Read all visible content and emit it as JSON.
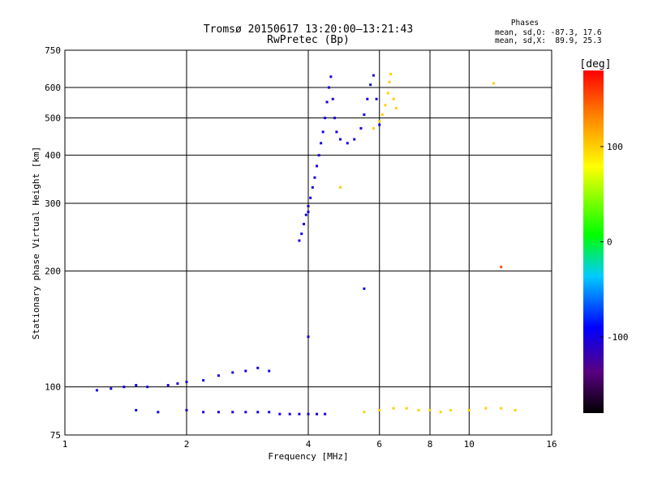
{
  "chart_data": {
    "type": "scatter",
    "title": "Tromsø 20150617 13:20:00–13:21:43",
    "subtitle": "RwPretec (Bp)",
    "xlabel": "Frequency [MHz]",
    "ylabel": "Stationary phase Virtual Height [km]",
    "x_scale": "log",
    "y_scale": "log",
    "xlim": [
      1,
      16
    ],
    "ylim": [
      75,
      750
    ],
    "xticks": [
      1,
      2,
      4,
      6,
      8,
      10,
      16
    ],
    "xtick_labels": [
      "1",
      "2",
      "4",
      "6",
      "8",
      "10",
      "16"
    ],
    "yticks": [
      75,
      100,
      200,
      300,
      400,
      500,
      600,
      750
    ],
    "ytick_labels": [
      "75",
      "100",
      "200",
      "300",
      "400",
      "500",
      "600",
      "750"
    ],
    "grid": true,
    "info_box": {
      "title": "Phases",
      "line_o": "mean, sd,O: -87.3, 17.6",
      "line_x": "mean, sd,X:  89.9, 25.3"
    },
    "colorbar": {
      "label": "[deg]",
      "range": [
        -180,
        180
      ],
      "ticks": [
        -100,
        0,
        100
      ],
      "tick_labels": [
        "-100",
        "0",
        "100"
      ],
      "colormap": "rainbow"
    },
    "series": [
      {
        "points": [
          [
            3.85,
            250,
            -100
          ],
          [
            3.9,
            265,
            -100
          ],
          [
            3.95,
            280,
            -100
          ],
          [
            4.0,
            295,
            -100
          ],
          [
            4.05,
            310,
            -100
          ],
          [
            4.1,
            330,
            -100
          ],
          [
            4.15,
            350,
            -100
          ],
          [
            4.2,
            375,
            -100
          ],
          [
            4.25,
            400,
            -100
          ],
          [
            4.3,
            430,
            -100
          ],
          [
            4.35,
            460,
            -100
          ],
          [
            4.4,
            500,
            -100
          ],
          [
            4.45,
            550,
            -100
          ],
          [
            4.5,
            600,
            -100
          ],
          [
            4.55,
            640,
            -100
          ],
          [
            4.6,
            560,
            -100
          ],
          [
            4.65,
            500,
            -100
          ],
          [
            4.7,
            460,
            -100
          ],
          [
            4.8,
            440,
            -100
          ],
          [
            5.0,
            430,
            -100
          ],
          [
            5.2,
            440,
            -100
          ],
          [
            5.4,
            470,
            -100
          ],
          [
            5.5,
            510,
            -100
          ],
          [
            5.6,
            560,
            -100
          ],
          [
            5.7,
            610,
            -100
          ],
          [
            5.8,
            645,
            -100
          ],
          [
            5.9,
            560,
            -100
          ],
          [
            6.0,
            480,
            -100
          ],
          [
            3.8,
            240,
            -100
          ],
          [
            4.0,
            285,
            -100
          ]
        ]
      },
      {
        "points": [
          [
            5.8,
            470,
            100
          ],
          [
            6.0,
            490,
            100
          ],
          [
            6.1,
            510,
            100
          ],
          [
            6.2,
            540,
            100
          ],
          [
            6.3,
            580,
            100
          ],
          [
            6.35,
            620,
            100
          ],
          [
            6.4,
            650,
            100
          ],
          [
            6.5,
            560,
            100
          ],
          [
            6.6,
            530,
            100
          ]
        ]
      },
      {
        "points": [
          [
            1.2,
            98,
            -100
          ],
          [
            1.3,
            99,
            -100
          ],
          [
            1.4,
            100,
            -100
          ],
          [
            1.5,
            101,
            -100
          ],
          [
            1.6,
            100,
            -100
          ],
          [
            1.8,
            101,
            -100
          ],
          [
            1.9,
            102,
            -100
          ],
          [
            2.0,
            103,
            -100
          ],
          [
            2.2,
            104,
            -100
          ],
          [
            2.4,
            107,
            -100
          ],
          [
            2.6,
            109,
            -100
          ],
          [
            2.8,
            110,
            -100
          ],
          [
            3.0,
            112,
            -100
          ],
          [
            3.2,
            110,
            -100
          ]
        ]
      },
      {
        "points": [
          [
            1.5,
            87,
            -100
          ],
          [
            1.7,
            86,
            -100
          ],
          [
            2.0,
            87,
            -100
          ],
          [
            2.2,
            86,
            -100
          ],
          [
            2.4,
            86,
            -100
          ],
          [
            2.6,
            86,
            -100
          ],
          [
            2.8,
            86,
            -100
          ],
          [
            3.0,
            86,
            -100
          ],
          [
            3.2,
            86,
            -100
          ],
          [
            3.4,
            85,
            -100
          ],
          [
            3.6,
            85,
            -100
          ],
          [
            3.8,
            85,
            -100
          ],
          [
            4.0,
            85,
            -100
          ],
          [
            4.2,
            85,
            -100
          ],
          [
            4.4,
            85,
            -100
          ]
        ]
      },
      {
        "points": [
          [
            5.5,
            86,
            100
          ],
          [
            6.0,
            87,
            100
          ],
          [
            6.5,
            88,
            100
          ],
          [
            7.0,
            88,
            100
          ],
          [
            7.5,
            87,
            100
          ],
          [
            8.0,
            87,
            100
          ],
          [
            8.5,
            86,
            100
          ],
          [
            9.0,
            87,
            100
          ],
          [
            10.0,
            87,
            100
          ],
          [
            11.0,
            88,
            100
          ],
          [
            12.0,
            88,
            100
          ],
          [
            13.0,
            87,
            100
          ]
        ]
      },
      {
        "points": [
          [
            11.5,
            615,
            100
          ],
          [
            12.0,
            205,
            150
          ],
          [
            5.5,
            180,
            -100
          ],
          [
            4.0,
            135,
            -100
          ],
          [
            4.8,
            330,
            100
          ]
        ]
      }
    ]
  }
}
